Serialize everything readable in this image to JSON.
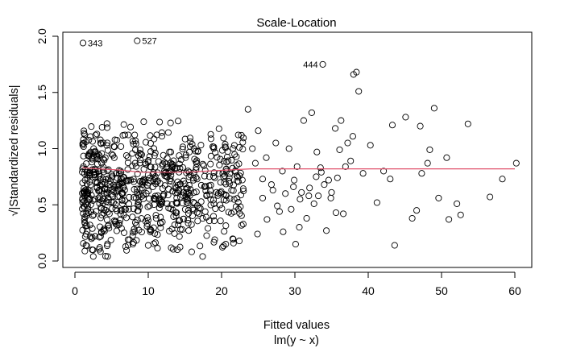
{
  "chart_data": {
    "type": "scatter",
    "title": "Scale-Location",
    "xlabel": "Fitted values",
    "xlabel2": "lm(y ~ x)",
    "ylabel": "√|Standardized residuals|",
    "xlim": [
      -0.5,
      62.5
    ],
    "ylim": [
      -0.03,
      2.02
    ],
    "xticks": [
      0,
      10,
      20,
      30,
      40,
      50,
      60
    ],
    "yticks": [
      0.0,
      0.5,
      1.0,
      1.5,
      2.0
    ],
    "ytick_labels": [
      "0.0",
      "0.5",
      "1.0",
      "1.5",
      "2.0"
    ],
    "point_symbol": "open-circle",
    "smoother_color": "#e0506a",
    "labeled_points": [
      {
        "label": "343",
        "x": 1.1,
        "y": 1.94
      },
      {
        "label": "527",
        "x": 8.5,
        "y": 1.96
      },
      {
        "label": "444",
        "x": 33.8,
        "y": 1.75
      }
    ],
    "sparse_points": [
      [
        23.6,
        1.35
      ],
      [
        24.2,
        1.0
      ],
      [
        24.6,
        0.87
      ],
      [
        25.0,
        1.16
      ],
      [
        25.6,
        0.56
      ],
      [
        26.1,
        0.92
      ],
      [
        26.8,
        0.68
      ],
      [
        27.4,
        1.05
      ],
      [
        27.9,
        0.44
      ],
      [
        28.3,
        0.8
      ],
      [
        28.7,
        0.6
      ],
      [
        29.2,
        1.0
      ],
      [
        29.5,
        0.46
      ],
      [
        29.9,
        0.72
      ],
      [
        30.3,
        0.84
      ],
      [
        30.7,
        0.55
      ],
      [
        30.9,
        0.61
      ],
      [
        31.2,
        1.25
      ],
      [
        31.6,
        0.38
      ],
      [
        32.0,
        0.65
      ],
      [
        32.3,
        1.32
      ],
      [
        32.6,
        0.51
      ],
      [
        32.9,
        0.75
      ],
      [
        33.2,
        0.58
      ],
      [
        33.6,
        0.79
      ],
      [
        34.0,
        0.68
      ],
      [
        34.3,
        0.27
      ],
      [
        34.6,
        0.72
      ],
      [
        35.0,
        0.61
      ],
      [
        35.5,
        1.18
      ],
      [
        35.8,
        0.74
      ],
      [
        36.1,
        0.99
      ],
      [
        36.3,
        1.25
      ],
      [
        36.6,
        0.42
      ],
      [
        36.9,
        0.84
      ],
      [
        37.2,
        1.05
      ],
      [
        37.6,
        0.89
      ],
      [
        38.0,
        1.66
      ],
      [
        38.4,
        1.68
      ],
      [
        38.7,
        1.51
      ],
      [
        39.3,
        0.78
      ],
      [
        40.3,
        1.03
      ],
      [
        41.2,
        0.52
      ],
      [
        42.1,
        0.8
      ],
      [
        43.0,
        0.73
      ],
      [
        43.3,
        1.21
      ],
      [
        43.6,
        0.14
      ],
      [
        45.1,
        1.28
      ],
      [
        46.0,
        0.38
      ],
      [
        46.6,
        0.45
      ],
      [
        47.3,
        0.78
      ],
      [
        47.1,
        1.2
      ],
      [
        48.1,
        0.87
      ],
      [
        48.4,
        0.99
      ],
      [
        49.0,
        1.36
      ],
      [
        49.6,
        0.56
      ],
      [
        50.7,
        0.92
      ],
      [
        51.0,
        0.37
      ],
      [
        52.1,
        0.51
      ],
      [
        52.6,
        0.41
      ],
      [
        53.6,
        1.22
      ],
      [
        56.6,
        0.57
      ],
      [
        58.3,
        0.73
      ],
      [
        60.2,
        0.87
      ],
      [
        30.1,
        0.15
      ],
      [
        33.0,
        0.97
      ],
      [
        35.6,
        0.43
      ],
      [
        27.0,
        0.63
      ],
      [
        26.2,
        0.37
      ],
      [
        24.9,
        0.24
      ],
      [
        28.4,
        0.26
      ],
      [
        31.9,
        0.58
      ],
      [
        29.8,
        0.66
      ],
      [
        34.9,
        0.56
      ],
      [
        25.6,
        0.73
      ],
      [
        27.6,
        0.49
      ],
      [
        30.6,
        0.3
      ],
      [
        37.9,
        1.11
      ],
      [
        33.5,
        0.83
      ]
    ],
    "smoother": [
      [
        1,
        0.83
      ],
      [
        3,
        0.82
      ],
      [
        6,
        0.81
      ],
      [
        9,
        0.79
      ],
      [
        12,
        0.79
      ],
      [
        15,
        0.79
      ],
      [
        18,
        0.8
      ],
      [
        21,
        0.81
      ],
      [
        24,
        0.82
      ],
      [
        27,
        0.82
      ],
      [
        30,
        0.82
      ],
      [
        33,
        0.82
      ],
      [
        40,
        0.82
      ],
      [
        50,
        0.82
      ],
      [
        60,
        0.82
      ]
    ],
    "dense_cloud_note": "About 1000 observations overall; most fitted values lie between 1 and 23 with sqrt|standardized residuals| spread between 0 and about 1.7."
  }
}
